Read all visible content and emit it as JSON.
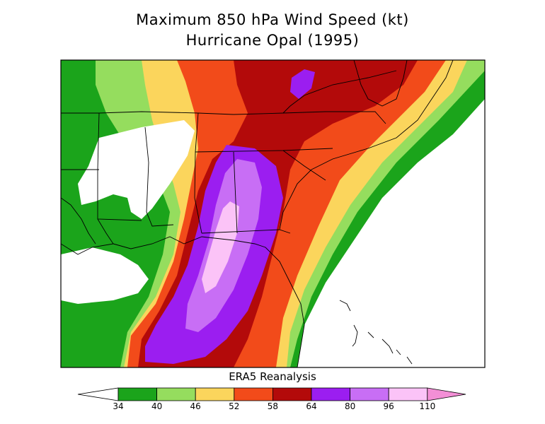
{
  "title": "Maximum 850 hPa Wind Speed (kt)",
  "subtitle": "Hurricane Opal (1995)",
  "source_caption": "ERA5 Reanalysis",
  "colorbar": {
    "ticks": [
      "34",
      "40",
      "46",
      "52",
      "58",
      "64",
      "80",
      "96",
      "110"
    ],
    "colors": [
      "#ffffff",
      "#1ba41b",
      "#95dd5e",
      "#fbd55c",
      "#f24b1a",
      "#b30a0a",
      "#9b1ef0",
      "#c86ef5",
      "#fbc3f7",
      "#f38fd6"
    ]
  },
  "map": {
    "region": "Southeastern United States",
    "field": "Maximum 850 hPa wind speed",
    "units": "kt"
  }
}
